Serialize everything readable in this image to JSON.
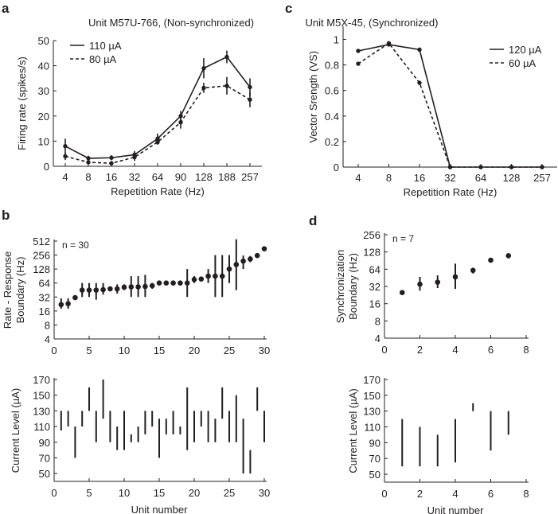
{
  "chart_data": [
    {
      "panel": "a",
      "type": "line",
      "title": "Unit M57U-766, (Non-synchronized)",
      "xlabel": "Repetition Rate (Hz)",
      "ylabel": "Firing rate (spikes/s)",
      "categories": [
        "4",
        "8",
        "16",
        "32",
        "64",
        "90",
        "128",
        "188",
        "257"
      ],
      "yticks": [
        0,
        10,
        20,
        30,
        40,
        50
      ],
      "ylim": [
        0,
        50
      ],
      "legend_position": "top-left",
      "series": [
        {
          "name": "110 µA",
          "style": "solid",
          "values": [
            8,
            3.2,
            3.4,
            4.6,
            11,
            20,
            39,
            43.5,
            31.5
          ],
          "errors": [
            3,
            1,
            1,
            1.5,
            2,
            2,
            4,
            2.5,
            3.5
          ]
        },
        {
          "name": "80 µA",
          "style": "dashed",
          "values": [
            4,
            1.6,
            1.2,
            3.6,
            9.6,
            17.5,
            31.2,
            32,
            26.5
          ],
          "errors": [
            1.5,
            0.5,
            0.5,
            1.5,
            1,
            2.5,
            2,
            3.5,
            3
          ]
        }
      ]
    },
    {
      "panel": "c",
      "type": "line",
      "title": "Unit M5X-45, (Synchronized)",
      "xlabel": "Repetition Rate (Hz)",
      "ylabel": "Vector Srength (VS)",
      "categories": [
        "4",
        "8",
        "16",
        "32",
        "64",
        "128",
        "257"
      ],
      "yticks": [
        0,
        0.2,
        0.4,
        0.6,
        0.8,
        1
      ],
      "ytick_labels": [
        "0",
        "0.2",
        "0.4",
        "0.6",
        "0.8",
        "1"
      ],
      "ylim": [
        0,
        1.1
      ],
      "legend_position": "top-right",
      "series": [
        {
          "name": "120 µA",
          "style": "solid",
          "values": [
            0.91,
            0.96,
            0.92,
            0,
            0,
            0,
            0
          ]
        },
        {
          "name": "60 µA",
          "style": "dashed",
          "values": [
            0.81,
            0.97,
            0.66,
            0,
            0,
            0,
            0
          ]
        }
      ]
    },
    {
      "panel": "b",
      "type": "scatter",
      "ylabel": [
        "Rate - Response",
        "Boundary (Hz)"
      ],
      "annotation": "n = 30",
      "yscale": "log2",
      "ylim": [
        4,
        512
      ],
      "yticks": [
        4,
        8,
        16,
        32,
        64,
        128,
        256,
        512
      ],
      "xlim": [
        0,
        30
      ],
      "xticks": [
        0,
        5,
        10,
        15,
        20,
        25,
        30
      ],
      "points": [
        {
          "x": 1,
          "y": 22,
          "lo": 18,
          "hi": 30
        },
        {
          "x": 2,
          "y": 23,
          "lo": 18,
          "hi": 30
        },
        {
          "x": 3,
          "y": 31
        },
        {
          "x": 4,
          "y": 45,
          "lo": 32,
          "hi": 64
        },
        {
          "x": 5,
          "y": 45,
          "lo": 32,
          "hi": 64
        },
        {
          "x": 6,
          "y": 45,
          "lo": 28,
          "hi": 64
        },
        {
          "x": 7,
          "y": 46,
          "lo": 36,
          "hi": 64
        },
        {
          "x": 8,
          "y": 48
        },
        {
          "x": 9,
          "y": 48,
          "lo": 38,
          "hi": 60
        },
        {
          "x": 10,
          "y": 52,
          "lo": 45,
          "hi": 60
        },
        {
          "x": 11,
          "y": 53,
          "lo": 32,
          "hi": 90
        },
        {
          "x": 12,
          "y": 53,
          "lo": 32,
          "hi": 90
        },
        {
          "x": 13,
          "y": 54,
          "lo": 32,
          "hi": 96
        },
        {
          "x": 14,
          "y": 56,
          "lo": 48,
          "hi": 64
        },
        {
          "x": 15,
          "y": 64
        },
        {
          "x": 16,
          "y": 64
        },
        {
          "x": 17,
          "y": 64
        },
        {
          "x": 18,
          "y": 64
        },
        {
          "x": 19,
          "y": 64,
          "lo": 32,
          "hi": 128
        },
        {
          "x": 20,
          "y": 76,
          "lo": 64,
          "hi": 90
        },
        {
          "x": 21,
          "y": 78
        },
        {
          "x": 22,
          "y": 90,
          "lo": 64,
          "hi": 128
        },
        {
          "x": 23,
          "y": 90,
          "lo": 32,
          "hi": 256
        },
        {
          "x": 24,
          "y": 90,
          "lo": 32,
          "hi": 256
        },
        {
          "x": 25,
          "y": 128,
          "lo": 64,
          "hi": 256
        },
        {
          "x": 26,
          "y": 160,
          "lo": 45,
          "hi": 560
        },
        {
          "x": 27,
          "y": 190,
          "lo": 128,
          "hi": 250
        },
        {
          "x": 28,
          "y": 210,
          "lo": 180,
          "hi": 245
        },
        {
          "x": 29,
          "y": 250
        },
        {
          "x": 30,
          "y": 350
        }
      ]
    },
    {
      "panel": "b-lower",
      "type": "range",
      "xlabel": "Unit number",
      "ylabel": "Current Level (µA)",
      "ylim": [
        40,
        170
      ],
      "yticks": [
        50,
        70,
        90,
        110,
        130,
        150,
        170
      ],
      "xlim": [
        0,
        30
      ],
      "xticks": [
        0,
        5,
        10,
        15,
        20,
        25,
        30
      ],
      "ranges": [
        [
          1,
          105,
          130
        ],
        [
          2,
          110,
          130
        ],
        [
          3,
          70,
          110
        ],
        [
          4,
          110,
          130
        ],
        [
          5,
          130,
          160
        ],
        [
          6,
          90,
          130
        ],
        [
          7,
          120,
          170
        ],
        [
          8,
          90,
          130
        ],
        [
          9,
          80,
          110
        ],
        [
          10,
          80,
          130
        ],
        [
          11,
          90,
          100
        ],
        [
          12,
          90,
          110
        ],
        [
          13,
          100,
          130
        ],
        [
          14,
          110,
          130
        ],
        [
          15,
          70,
          120
        ],
        [
          16,
          100,
          120
        ],
        [
          17,
          100,
          130
        ],
        [
          18,
          100,
          110
        ],
        [
          19,
          80,
          160
        ],
        [
          20,
          90,
          130
        ],
        [
          21,
          110,
          130
        ],
        [
          22,
          90,
          130
        ],
        [
          23,
          90,
          120
        ],
        [
          24,
          120,
          160
        ],
        [
          25,
          90,
          130
        ],
        [
          26,
          90,
          150
        ],
        [
          27,
          50,
          120
        ],
        [
          28,
          50,
          80
        ],
        [
          29,
          130,
          160
        ],
        [
          30,
          90,
          130
        ]
      ]
    },
    {
      "panel": "d",
      "type": "scatter",
      "ylabel": [
        "Synchronization",
        "Boundary (Hz)"
      ],
      "annotation": "n = 7",
      "yscale": "log2",
      "ylim": [
        4,
        256
      ],
      "yticks": [
        4,
        8,
        16,
        32,
        64,
        128,
        256
      ],
      "xlim": [
        0,
        8
      ],
      "xticks": [
        0,
        2,
        4,
        6,
        8
      ],
      "points": [
        {
          "x": 1,
          "y": 25
        },
        {
          "x": 2,
          "y": 35,
          "lo": 27,
          "hi": 47
        },
        {
          "x": 3,
          "y": 38,
          "lo": 30,
          "hi": 50
        },
        {
          "x": 4,
          "y": 47,
          "lo": 29,
          "hi": 80
        },
        {
          "x": 5,
          "y": 61,
          "lo": 54,
          "hi": 68
        },
        {
          "x": 6,
          "y": 92
        },
        {
          "x": 7,
          "y": 110,
          "lo": 100,
          "hi": 122
        }
      ]
    },
    {
      "panel": "d-lower",
      "type": "range",
      "xlabel": "Unit number",
      "ylabel": "Current Level (µA)",
      "ylim": [
        40,
        170
      ],
      "yticks": [
        50,
        70,
        90,
        110,
        130,
        150,
        170
      ],
      "xlim": [
        0,
        8
      ],
      "xticks": [
        0,
        2,
        4,
        6,
        8
      ],
      "ranges": [
        [
          1,
          60,
          120
        ],
        [
          2,
          60,
          110
        ],
        [
          3,
          60,
          100
        ],
        [
          4,
          65,
          120
        ],
        [
          5,
          130,
          140
        ],
        [
          6,
          80,
          130
        ],
        [
          7,
          100,
          130
        ]
      ]
    }
  ],
  "panel_letters": [
    "a",
    "b",
    "c",
    "d"
  ]
}
